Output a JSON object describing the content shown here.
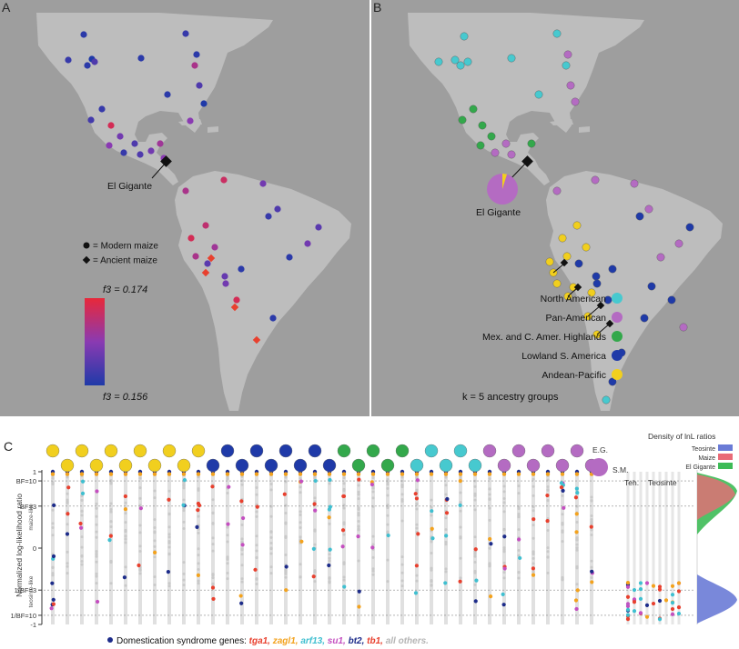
{
  "panels": {
    "A": {
      "letter": "A",
      "callout": "El Gigante",
      "legend": {
        "modern": "= Modern maize",
        "ancient": "= Ancient maize",
        "f3_high": "f3 = 0.174",
        "f3_low": "f3 = 0.156",
        "colors": {
          "high": "#e8283a",
          "mid": "#8a3ab2",
          "low": "#1f3aa8"
        }
      },
      "markers": {
        "f3_values": [
          0.157,
          0.156,
          0.158,
          0.157,
          0.16,
          0.157,
          0.157,
          0.158,
          0.168,
          0.157,
          0.156,
          0.16,
          0.165,
          0.158,
          0.159,
          0.172,
          0.163,
          0.16,
          0.165,
          0.158,
          0.16,
          0.167,
          0.163,
          0.165,
          0.168,
          0.171,
          0.163,
          0.17,
          0.167,
          0.172,
          0.168,
          0.161,
          0.162,
          0.157,
          0.158,
          0.16,
          0.161,
          0.163,
          0.157,
          0.163,
          0.172,
          0.157
        ]
      }
    },
    "B": {
      "letter": "B",
      "callout": "El Gigante",
      "legend_items": [
        {
          "label": "North American",
          "color": "#47c9cf"
        },
        {
          "label": "Pan-American",
          "color": "#b46bc2"
        },
        {
          "label": "Mex. and C. Amer. Highlands",
          "color": "#33a84b"
        },
        {
          "label": "Lowland S. America",
          "color": "#1f3aa8"
        },
        {
          "label": "Andean-Pacific",
          "color": "#f1cf1e"
        }
      ],
      "k_note": "k = 5 ancestry groups"
    },
    "C": {
      "letter": "C",
      "yaxis_title": "Normalized log-likelihood ratio",
      "side_labels": {
        "top": "maize-like",
        "bottom": "teosinte-like"
      },
      "ticks": [
        "1",
        "BF=10",
        "BF=3",
        "0",
        "1/BF=3",
        "1/BF=10",
        "-1"
      ],
      "column_labels": {
        "eg": "E.G.",
        "sm": "S.M.",
        "teh": "Teh.",
        "teosinte": "Teosinte"
      },
      "density": {
        "title": "Density of lnL ratios",
        "entries": [
          {
            "label": "Teosinte",
            "color": "#6a7bd6"
          },
          {
            "label": "Maize",
            "color": "#e96a77"
          },
          {
            "label": "El Gigante",
            "color": "#3dbb57"
          }
        ]
      },
      "genes_caption": {
        "prefix": "Domestication syndrome genes: ",
        "genes": [
          {
            "name": "tga1",
            "color": "#e8402e"
          },
          {
            "name": "zagl1",
            "color": "#f3a21d"
          },
          {
            "name": "arf13",
            "color": "#3fbfd0"
          },
          {
            "name": "su1",
            "color": "#c44fc0"
          },
          {
            "name": "bt2",
            "color": "#1d2c8a"
          },
          {
            "name": "tb1",
            "color": "#e8402e"
          },
          {
            "name": "all others.",
            "color": "#b5b5b5"
          }
        ]
      },
      "ancestry_groups": [
        "Andean-Pacific",
        "Andean-Pacific",
        "Andean-Pacific",
        "Andean-Pacific",
        "Andean-Pacific",
        "Andean-Pacific",
        "Andean-Pacific",
        "Andean-Pacific",
        "Andean-Pacific",
        "Andean-Pacific",
        "Andean-Pacific",
        "Lowland S. America",
        "Lowland S. America",
        "Lowland S. America",
        "Lowland S. America",
        "Lowland S. America",
        "Lowland S. America",
        "Lowland S. America",
        "Lowland S. America",
        "Lowland S. America",
        "Mex. and C. Amer. Highlands",
        "Mex. and C. Amer. Highlands",
        "Mex. and C. Amer. Highlands",
        "Mex. and C. Amer. Highlands",
        "Mex. and C. Amer. Highlands",
        "North American",
        "North American",
        "North American",
        "North American",
        "North American",
        "Pan-American",
        "Pan-American",
        "Pan-American",
        "Pan-American",
        "Pan-American",
        "Pan-American",
        "Pan-American",
        "Pan-American"
      ]
    }
  }
}
